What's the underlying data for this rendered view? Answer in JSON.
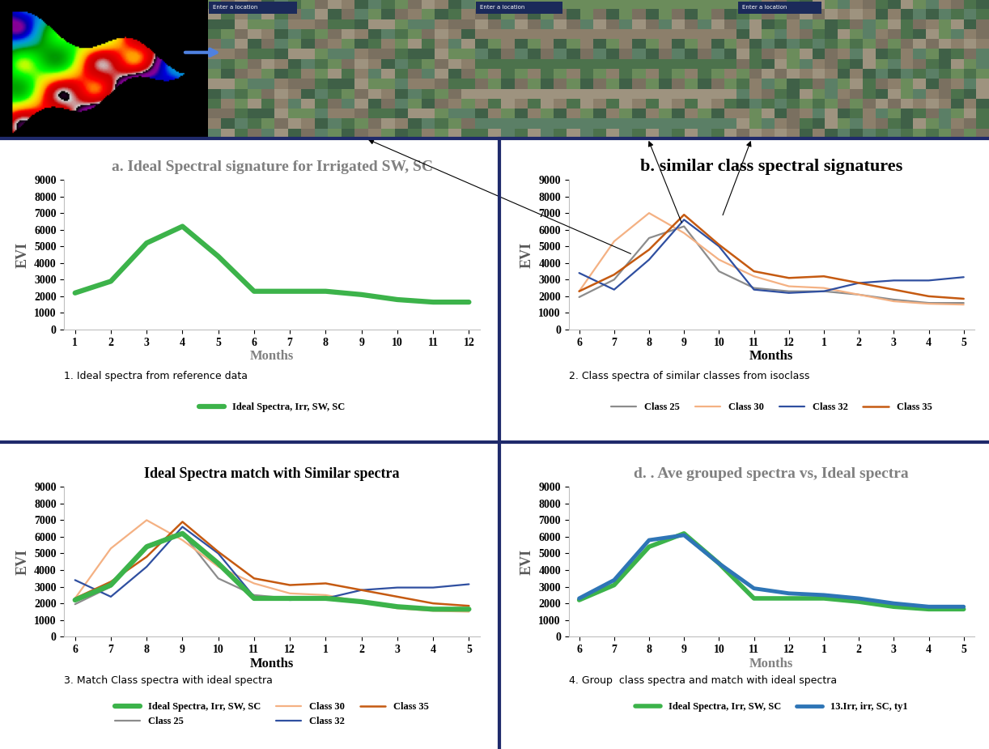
{
  "image_strip": {
    "search_box_text": "Enter a location"
  },
  "chart_data": [
    {
      "type": "line",
      "title": "a. Ideal Spectral signature for Irrigated SW, SC",
      "x_label": "Months",
      "y_label": "EVI",
      "annotation": "1. Ideal spectra from reference data",
      "categories": [
        "1",
        "2",
        "3",
        "4",
        "5",
        "6",
        "7",
        "8",
        "9",
        "10",
        "11",
        "12"
      ],
      "series": [
        {
          "name": "Ideal Spectra, Irr, SW, SC",
          "color": "#3cb34a",
          "line_style": "solid",
          "values": [
            2200,
            2900,
            5200,
            6200,
            4400,
            2300,
            2300,
            2300,
            2100,
            1800,
            1650,
            1650
          ]
        }
      ],
      "ylim": [
        0,
        9000
      ],
      "yticks": [
        0,
        1000,
        2000,
        3000,
        4000,
        5000,
        6000,
        7000,
        8000,
        9000
      ],
      "grid": false,
      "legend": "below"
    },
    {
      "type": "line",
      "title": "b. similar class spectral signatures",
      "x_label": "Months",
      "y_label": "EVI",
      "annotation": "2. Class spectra of similar classes from isoclass",
      "categories": [
        "6",
        "7",
        "8",
        "9",
        "10",
        "11",
        "12",
        "1",
        "2",
        "3",
        "4",
        "5"
      ],
      "series": [
        {
          "name": "Class 25",
          "color": "#8c8c8c",
          "line_style": "solid",
          "values": [
            1950,
            3000,
            5500,
            6200,
            3500,
            2500,
            2300,
            2300,
            2100,
            1800,
            1600,
            1600
          ]
        },
        {
          "name": "Class 30",
          "color": "#f4b183",
          "line_style": "solid",
          "values": [
            2300,
            5300,
            7000,
            5800,
            4200,
            3200,
            2600,
            2500,
            2100,
            1700,
            1550,
            1500
          ]
        },
        {
          "name": "Class 32",
          "color": "#2f4fa0",
          "line_style": "solid",
          "values": [
            3400,
            2400,
            4200,
            6600,
            5000,
            2400,
            2200,
            2300,
            2800,
            2950,
            2950,
            3150
          ]
        },
        {
          "name": "Class 35",
          "color": "#c55a11",
          "line_style": "solid",
          "values": [
            2300,
            3300,
            4800,
            6900,
            5100,
            3500,
            3100,
            3200,
            2800,
            2400,
            2000,
            1850
          ]
        }
      ],
      "ylim": [
        0,
        9000
      ],
      "yticks": [
        0,
        1000,
        2000,
        3000,
        4000,
        5000,
        6000,
        7000,
        8000,
        9000
      ],
      "grid": false,
      "legend": "below"
    },
    {
      "type": "line",
      "title": "Ideal Spectra match with Similar spectra",
      "x_label": "Months",
      "y_label": "EVI",
      "annotation": "3. Match Class spectra with ideal spectra",
      "categories": [
        "6",
        "7",
        "8",
        "9",
        "10",
        "11",
        "12",
        "1",
        "2",
        "3",
        "4",
        "5"
      ],
      "series": [
        {
          "name": "Ideal Spectra, Irr, SW, SC",
          "color": "#3cb34a",
          "line_style": "solid",
          "values": [
            2200,
            3100,
            5400,
            6200,
            4400,
            2300,
            2300,
            2300,
            2100,
            1800,
            1650,
            1650
          ]
        },
        {
          "name": "Class 25",
          "color": "#8c8c8c",
          "line_style": "solid",
          "values": [
            1950,
            3000,
            5500,
            6200,
            3500,
            2500,
            2300,
            2300,
            2100,
            1800,
            1600,
            1600
          ]
        },
        {
          "name": "Class 30",
          "color": "#f4b183",
          "line_style": "solid",
          "values": [
            2300,
            5300,
            7000,
            5800,
            4200,
            3200,
            2600,
            2500,
            2100,
            1700,
            1550,
            1500
          ]
        },
        {
          "name": "Class 32",
          "color": "#2f4fa0",
          "line_style": "solid",
          "values": [
            3400,
            2400,
            4200,
            6600,
            5000,
            2400,
            2200,
            2300,
            2800,
            2950,
            2950,
            3150
          ]
        },
        {
          "name": "Class 35",
          "color": "#c55a11",
          "line_style": "solid",
          "values": [
            2300,
            3300,
            4800,
            6900,
            5100,
            3500,
            3100,
            3200,
            2800,
            2400,
            2000,
            1850
          ]
        }
      ],
      "ylim": [
        0,
        9000
      ],
      "yticks": [
        0,
        1000,
        2000,
        3000,
        4000,
        5000,
        6000,
        7000,
        8000,
        9000
      ],
      "grid": false,
      "legend": "below"
    },
    {
      "type": "line",
      "title": "d. . Ave grouped spectra vs, Ideal spectra",
      "x_label": "Months",
      "y_label": "EVI",
      "annotation": "4. Group  class spectra and match with ideal spectra",
      "categories": [
        "6",
        "7",
        "8",
        "9",
        "10",
        "11",
        "12",
        "1",
        "2",
        "3",
        "4",
        "5"
      ],
      "series": [
        {
          "name": "Ideal Spectra, Irr, SW, SC",
          "color": "#3cb34a",
          "line_style": "solid",
          "values": [
            2200,
            3100,
            5400,
            6200,
            4400,
            2300,
            2300,
            2300,
            2100,
            1800,
            1650,
            1650
          ]
        },
        {
          "name": "13.Irr, irr, SC, ty1",
          "color": "#2e75b6",
          "line_style": "solid",
          "values": [
            2300,
            3400,
            5800,
            6100,
            4400,
            2900,
            2600,
            2500,
            2300,
            2000,
            1800,
            1800
          ]
        }
      ],
      "ylim": [
        0,
        9000
      ],
      "yticks": [
        0,
        1000,
        2000,
        3000,
        4000,
        5000,
        6000,
        7000,
        8000,
        9000
      ],
      "grid": false,
      "legend": "below"
    }
  ]
}
